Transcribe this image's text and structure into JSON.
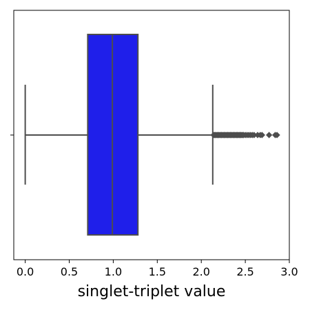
{
  "chart_data": {
    "type": "box",
    "orientation": "horizontal",
    "title": "",
    "xlabel": "singlet-triplet value",
    "ylabel": "",
    "xlim": [
      -0.13,
      3.0
    ],
    "x_ticks": [
      0.0,
      0.5,
      1.0,
      1.5,
      2.0,
      2.5,
      3.0
    ],
    "x_tick_labels": [
      "0.0",
      "0.5",
      "1.0",
      "1.5",
      "2.0",
      "2.5",
      "3.0"
    ],
    "grid": false,
    "legend": "none",
    "box": {
      "whisker_low": 0.0,
      "q1": 0.71,
      "median": 0.99,
      "q3": 1.28,
      "whisker_high": 2.13,
      "fill_color": "#1f1fea",
      "line_color": "#4d4d4d"
    },
    "outliers": [
      2.14,
      2.15,
      2.16,
      2.17,
      2.18,
      2.19,
      2.2,
      2.21,
      2.22,
      2.23,
      2.24,
      2.25,
      2.26,
      2.27,
      2.28,
      2.29,
      2.3,
      2.31,
      2.32,
      2.33,
      2.34,
      2.35,
      2.36,
      2.37,
      2.38,
      2.39,
      2.4,
      2.41,
      2.42,
      2.43,
      2.44,
      2.45,
      2.46,
      2.47,
      2.48,
      2.5,
      2.52,
      2.54,
      2.56,
      2.58,
      2.6,
      2.64,
      2.67,
      2.69,
      2.77,
      2.84,
      2.86
    ]
  }
}
